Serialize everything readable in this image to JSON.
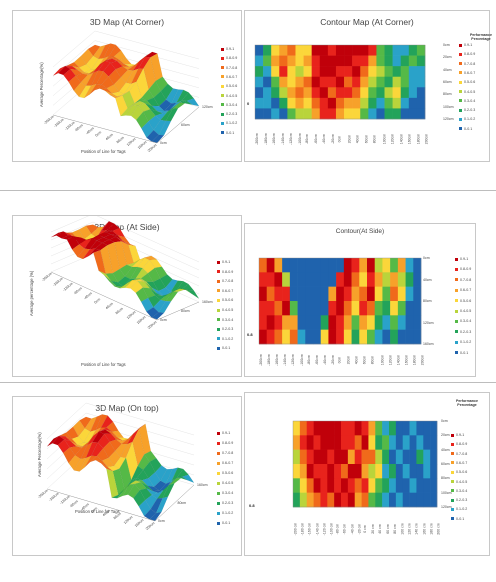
{
  "legend_bins": [
    "0.9-1",
    "0.8-0.9",
    "0.7-0.8",
    "0.6-0.7",
    "0.5-0.6",
    "0.4-0.5",
    "0.3-0.4",
    "0.2-0.3",
    "0.1-0.2",
    "0-0.1"
  ],
  "legend_colors": [
    "#c0000a",
    "#e8231c",
    "#f06a1b",
    "#f7a12a",
    "#fbd63a",
    "#b9d43b",
    "#55b947",
    "#23a35a",
    "#2aa2c9",
    "#1f63ad"
  ],
  "chart_data": [
    {
      "type": "surface",
      "title": "3D Map (At Corner)",
      "xlabel": "Position of Line for Tags",
      "ylabel": "Average Percentage(%)",
      "x": [
        "-200cm",
        "-180cm",
        "-160cm",
        "-140cm",
        "-120cm",
        "-100cm",
        "-80cm",
        "-60cm",
        "-40cm",
        "-20cm",
        "0cm",
        "20cm",
        "40cm",
        "60cm",
        "80cm",
        "100cm",
        "120cm",
        "140cm",
        "160cm",
        "180cm",
        "200cm"
      ],
      "x_ticks": [
        "-200cm",
        "-160cm",
        "-120cm",
        "-80cm",
        "-40cm",
        "0cm",
        "40cm",
        "80cm",
        "120cm",
        "160cm",
        "200cm"
      ],
      "y_ticks": [
        "0cm",
        "60cm",
        "120cm"
      ]
    },
    {
      "type": "heatmap",
      "title": "Contour Map (At Corner)",
      "legend_title": "Performance Percentage",
      "x_ticks": [
        "-200cm",
        "-180cm",
        "-160cm",
        "-140cm",
        "-120cm",
        "-100cm",
        "-80cm",
        "-60cm",
        "-40cm",
        "-20cm",
        "0cm",
        "20cm",
        "40cm",
        "60cm",
        "80cm",
        "100cm",
        "120cm",
        "140cm",
        "160cm",
        "180cm",
        "200cm"
      ],
      "y_ticks": [
        "0cm",
        "20cm",
        "40cm",
        "60cm",
        "80cm",
        "100cm",
        "120cm"
      ],
      "origin_label": "0",
      "values": [
        [
          0.0,
          0.2,
          0.5,
          0.6,
          0.7,
          0.5,
          0.5,
          0.9,
          0.9,
          0.8,
          0.9,
          0.95,
          0.95,
          0.9,
          0.85,
          0.3,
          0.2,
          0.1,
          0.1,
          0.2,
          0.3
        ],
        [
          0.1,
          0.3,
          0.6,
          0.7,
          0.6,
          0.5,
          0.6,
          0.8,
          0.95,
          0.9,
          0.9,
          0.9,
          0.85,
          0.8,
          0.6,
          0.3,
          0.2,
          0.1,
          0.2,
          0.3,
          0.2
        ],
        [
          0.2,
          0.1,
          0.5,
          0.8,
          0.5,
          0.4,
          0.55,
          0.85,
          0.9,
          0.95,
          0.85,
          0.8,
          0.9,
          0.7,
          0.5,
          0.4,
          0.3,
          0.2,
          0.3,
          0.15,
          0.1
        ],
        [
          0.1,
          0.05,
          0.3,
          0.6,
          0.5,
          0.6,
          0.7,
          0.9,
          0.8,
          0.85,
          0.9,
          0.7,
          0.8,
          0.6,
          0.4,
          0.3,
          0.2,
          0.4,
          0.3,
          0.1,
          0.1
        ],
        [
          0.0,
          0.1,
          0.2,
          0.4,
          0.6,
          0.7,
          0.6,
          0.8,
          0.9,
          0.75,
          0.8,
          0.85,
          0.7,
          0.5,
          0.3,
          0.2,
          0.4,
          0.5,
          0.2,
          0.1,
          0.0
        ],
        [
          0.1,
          0.1,
          0.0,
          0.2,
          0.5,
          0.6,
          0.5,
          0.7,
          0.85,
          0.9,
          0.7,
          0.6,
          0.65,
          0.4,
          0.2,
          0.1,
          0.3,
          0.4,
          0.1,
          0.05,
          0.0
        ],
        [
          0.0,
          0.05,
          0.1,
          0.0,
          0.3,
          0.4,
          0.45,
          0.6,
          0.8,
          0.85,
          0.6,
          0.5,
          0.5,
          0.3,
          0.1,
          0.0,
          0.2,
          0.2,
          0.0,
          0.0,
          0.0
        ]
      ]
    },
    {
      "type": "surface",
      "title": "3D Map (At Side)",
      "xlabel": "Position of Line for Tags",
      "ylabel": "Average percentage (%)",
      "x": [
        "-200cm",
        "-180cm",
        "-160cm",
        "-140cm",
        "-120cm",
        "-100cm",
        "-80cm",
        "-60cm",
        "-40cm",
        "-20cm",
        "0cm",
        "20cm",
        "40cm",
        "60cm",
        "80cm",
        "100cm",
        "120cm",
        "140cm",
        "160cm",
        "180cm",
        "200cm"
      ],
      "x_ticks": [
        "-200cm",
        "-160cm",
        "-120cm",
        "-80cm",
        "-40cm",
        "0cm",
        "40cm",
        "80cm",
        "120cm",
        "160cm",
        "200cm"
      ],
      "y_ticks": [
        "0cm",
        "80cm",
        "160cm"
      ]
    },
    {
      "type": "heatmap",
      "title": "Contour(At Side)",
      "x_ticks": [
        "-200cm",
        "-180cm",
        "-160cm",
        "-140cm",
        "-120cm",
        "-100cm",
        "-80cm",
        "-60cm",
        "-40cm",
        "-20cm",
        "0cm",
        "20cm",
        "40cm",
        "60cm",
        "80cm",
        "100cm",
        "120cm",
        "140cm",
        "160cm",
        "180cm",
        "200cm"
      ],
      "y_ticks": [
        "0cm",
        "40cm",
        "80cm",
        "120cm",
        "160cm"
      ],
      "origin_label": "0.8",
      "values": [
        [
          0.75,
          0.9,
          0.6,
          0.05,
          0.05,
          0.05,
          0.05,
          0.05,
          0.05,
          0.05,
          0.05,
          0.9,
          0.85,
          0.6,
          0.9,
          0.4,
          0.5,
          0.3,
          0.6,
          0.1,
          0.05
        ],
        [
          0.8,
          0.85,
          0.9,
          0.4,
          0.05,
          0.05,
          0.05,
          0.05,
          0.05,
          0.05,
          0.8,
          0.9,
          0.7,
          0.5,
          0.8,
          0.6,
          0.4,
          0.6,
          0.4,
          0.2,
          0.05
        ],
        [
          0.9,
          0.7,
          0.85,
          0.85,
          0.05,
          0.05,
          0.05,
          0.05,
          0.05,
          0.6,
          0.9,
          0.85,
          0.6,
          0.7,
          0.9,
          0.5,
          0.3,
          0.7,
          0.5,
          0.1,
          0.05
        ],
        [
          0.85,
          0.8,
          0.75,
          0.9,
          0.3,
          0.05,
          0.05,
          0.05,
          0.05,
          0.8,
          0.95,
          0.75,
          0.5,
          0.8,
          0.7,
          0.3,
          0.2,
          0.5,
          0.3,
          0.05,
          0.05
        ],
        [
          0.8,
          0.9,
          0.8,
          0.6,
          0.6,
          0.05,
          0.05,
          0.05,
          0.2,
          0.9,
          0.85,
          0.6,
          0.3,
          0.6,
          0.5,
          0.2,
          0.1,
          0.3,
          0.1,
          0.05,
          0.05
        ],
        [
          0.9,
          0.85,
          0.7,
          0.5,
          0.7,
          0.1,
          0.05,
          0.05,
          0.5,
          0.95,
          0.8,
          0.5,
          0.2,
          0.5,
          0.3,
          0.1,
          0.05,
          0.2,
          0.05,
          0.05,
          0.05
        ]
      ]
    },
    {
      "type": "surface",
      "title": "3D Map (On top)",
      "xlabel": "Position of Line for Tags",
      "ylabel": "Average Percentage(%)",
      "x": [
        "-200cm",
        "-180cm",
        "-160cm",
        "-140cm",
        "-120cm",
        "-100cm",
        "-80cm",
        "-60cm",
        "-40cm",
        "-20cm",
        "0cm",
        "20cm",
        "40cm",
        "60cm",
        "80cm",
        "100cm",
        "120cm",
        "140cm",
        "160cm",
        "180cm",
        "200cm"
      ],
      "x_ticks": [
        "-200cm",
        "-160cm",
        "-120cm",
        "-80cm",
        "-40cm",
        "0cm",
        "40cm",
        "80cm",
        "120cm",
        "160cm",
        "200cm"
      ],
      "y_ticks": [
        "0cm",
        "80cm",
        "160cm"
      ]
    },
    {
      "type": "heatmap",
      "title": "Contour Map (On top)",
      "legend_title": "Performance Percentage",
      "x_ticks": [
        "-200 cm",
        "-180 cm",
        "-160 cm",
        "-140 cm",
        "-120 cm",
        "-100 cm",
        "-80 cm",
        "-60 cm",
        "-40 cm",
        "-20 cm",
        "0 cm",
        "20 cm",
        "40 cm",
        "60 cm",
        "80 cm",
        "100 cm",
        "120 cm",
        "140 cm",
        "160 cm",
        "180 cm",
        "200 cm"
      ],
      "y_ticks": [
        "0cm",
        "20cm",
        "40cm",
        "60cm",
        "80cm",
        "100cm",
        "120cm"
      ],
      "origin_label": "0.8",
      "values": [
        [
          0.5,
          0.7,
          0.85,
          0.9,
          0.9,
          0.95,
          0.9,
          0.85,
          0.8,
          0.9,
          0.85,
          0.6,
          0.3,
          0.1,
          0.2,
          0.05,
          0.05,
          0.1,
          0.05,
          0.05,
          0.05
        ],
        [
          0.6,
          0.8,
          0.9,
          0.85,
          0.9,
          0.9,
          0.95,
          0.8,
          0.85,
          0.7,
          0.9,
          0.5,
          0.2,
          0.3,
          0.1,
          0.05,
          0.1,
          0.05,
          0.1,
          0.05,
          0.05
        ],
        [
          0.4,
          0.7,
          0.8,
          0.9,
          0.95,
          0.85,
          0.9,
          0.9,
          0.6,
          0.8,
          0.7,
          0.7,
          0.4,
          0.2,
          0.05,
          0.1,
          0.05,
          0.05,
          0.2,
          0.1,
          0.05
        ],
        [
          0.5,
          0.6,
          0.9,
          0.8,
          0.85,
          0.9,
          0.8,
          0.7,
          0.9,
          0.9,
          0.6,
          0.4,
          0.5,
          0.1,
          0.2,
          0.05,
          0.1,
          0.05,
          0.05,
          0.1,
          0.05
        ],
        [
          0.3,
          0.5,
          0.7,
          0.9,
          0.8,
          0.9,
          0.85,
          0.9,
          0.8,
          0.7,
          0.8,
          0.5,
          0.3,
          0.2,
          0.1,
          0.05,
          0.05,
          0.1,
          0.05,
          0.05,
          0.05
        ],
        [
          0.2,
          0.4,
          0.6,
          0.7,
          0.85,
          0.7,
          0.9,
          0.8,
          0.9,
          0.6,
          0.7,
          0.3,
          0.2,
          0.1,
          0.05,
          0.1,
          0.05,
          0.05,
          0.05,
          0.05,
          0.05
        ]
      ]
    }
  ]
}
